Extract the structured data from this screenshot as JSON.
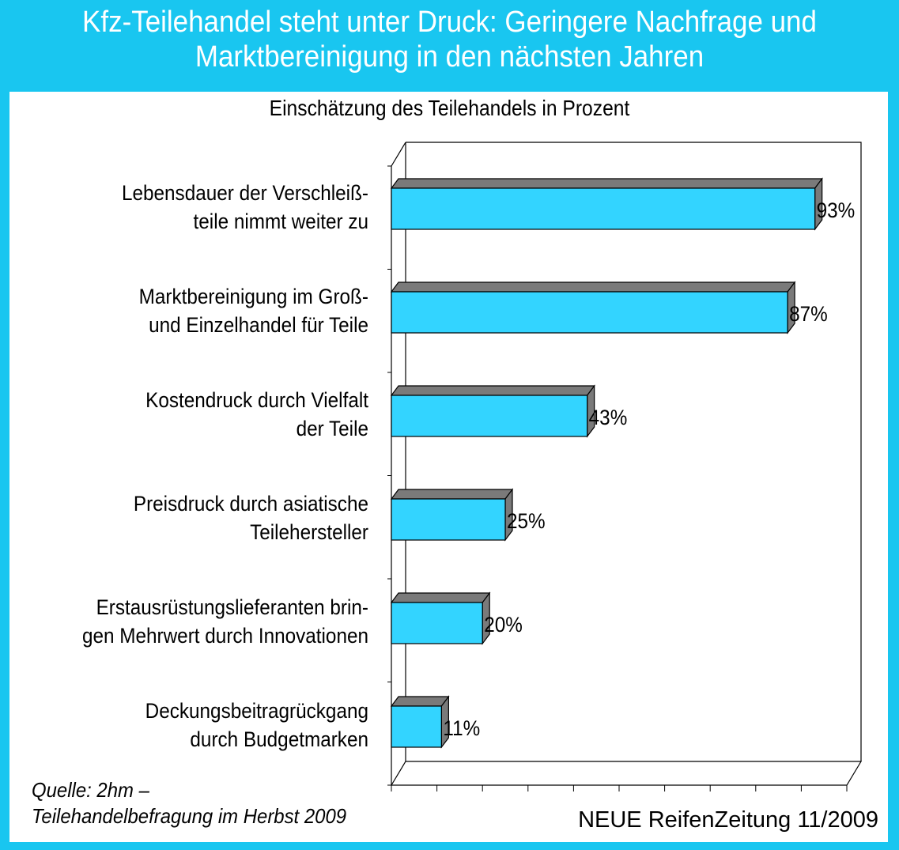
{
  "header": {
    "title_line1": "Kfz-Teilehandel steht unter Druck: Geringere Nachfrage und",
    "title_line2": "Marktbereinigung in den nächsten Jahren"
  },
  "chart_data": {
    "type": "bar",
    "orientation": "horizontal",
    "title": "Einschätzung des Teilehandels in Prozent",
    "categories": [
      [
        "Lebensdauer der Verschleiß-",
        "teile nimmt weiter zu"
      ],
      [
        "Marktbereinigung im Groß-",
        "und Einzelhandel für Teile"
      ],
      [
        "Kostendruck durch Vielfalt",
        "der Teile"
      ],
      [
        "Preisdruck durch asiatische",
        "Teilehersteller"
      ],
      [
        "Erstausrüstungslieferanten brin-",
        "gen Mehrwert durch Innovationen"
      ],
      [
        "Deckungsbeitragrückgang",
        "durch Budgetmarken"
      ]
    ],
    "values": [
      93,
      87,
      43,
      25,
      20,
      11
    ],
    "value_labels": [
      "93%",
      "87%",
      "43%",
      "25%",
      "20%",
      "11%"
    ],
    "xlim": [
      0,
      100
    ],
    "grid": false,
    "style": "3d",
    "colors": {
      "bar_face": "#33d4ff",
      "bar_top": "#7a7a7a",
      "bar_side": "#7a7a7a",
      "frame": "#19c6f0"
    }
  },
  "footer": {
    "source_line1": "Quelle: 2hm –",
    "source_line2": "Teilehandelbefragung im Herbst 2009",
    "credit": "NEUE ReifenZeitung 11/2009"
  }
}
